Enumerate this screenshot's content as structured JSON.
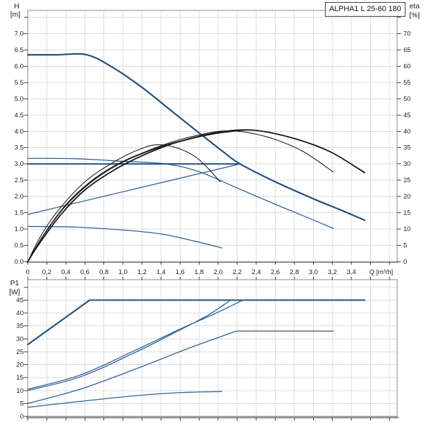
{
  "title_box": {
    "label": "ALPHA1 L 25-60 180"
  },
  "top_chart": {
    "y_left": {
      "title_lines": [
        "H",
        "[m]"
      ],
      "ticks": [
        "7.0",
        "6.5",
        "6.0",
        "5.5",
        "5.0",
        "4.5",
        "4.0",
        "3.5",
        "3.0",
        "2.5",
        "2.0",
        "1.5",
        "1.0",
        "0.5",
        "0.0"
      ]
    },
    "y_right": {
      "title_lines": [
        "eta",
        "[%]"
      ],
      "ticks": [
        "70",
        "65",
        "60",
        "55",
        "50",
        "45",
        "40",
        "35",
        "30",
        "25",
        "20",
        "15",
        "10",
        "5",
        "0"
      ]
    },
    "x": {
      "ticks": [
        "0",
        "0,2",
        "0,4",
        "0,6",
        "0,8",
        "1,0",
        "1,2",
        "1,4",
        "1,6",
        "1,8",
        "2,0",
        "2,2",
        "2,4",
        "2,6",
        "2,8",
        "3,0",
        "3,2",
        "3,4"
      ],
      "unit_label": "Q [m³/h]"
    }
  },
  "bottom_chart": {
    "y_left": {
      "title_lines": [
        "P1",
        "[W]"
      ],
      "ticks": [
        "45",
        "40",
        "35",
        "30",
        "25",
        "20",
        "15",
        "10",
        "5",
        "0"
      ]
    }
  },
  "chart_data": [
    {
      "type": "line",
      "title": "ALPHA1 L 25-60 180",
      "xlabel": "Q [m³/h]",
      "ylabel": "H [m]",
      "y2label": "eta [%]",
      "xlim": [
        0,
        3.88
      ],
      "ylim": [
        0,
        7.72
      ],
      "y2lim": [
        0,
        77.2
      ],
      "grid": true,
      "legend": "none",
      "series": [
        {
          "name": "speed-iii-curve",
          "axis": "H",
          "color": "#1f4e7c",
          "width": 2.2,
          "smooth": true,
          "points": [
            [
              0,
              6.35
            ],
            [
              0.3,
              6.35
            ],
            [
              0.62,
              6.35
            ],
            [
              0.9,
              5.95
            ],
            [
              1.2,
              5.35
            ],
            [
              1.5,
              4.65
            ],
            [
              1.8,
              3.95
            ],
            [
              2.05,
              3.38
            ],
            [
              2.23,
              3.0
            ],
            [
              2.6,
              2.45
            ],
            [
              3.0,
              1.93
            ],
            [
              3.3,
              1.57
            ],
            [
              3.54,
              1.27
            ]
          ]
        },
        {
          "name": "speed-ii-curve",
          "axis": "H",
          "color": "#2e5f93",
          "width": 1.3,
          "smooth": true,
          "points": [
            [
              0,
              3.17
            ],
            [
              0.5,
              3.16
            ],
            [
              1.0,
              3.08
            ],
            [
              1.45,
              3.0
            ],
            [
              1.8,
              2.76
            ],
            [
              2.2,
              2.26
            ],
            [
              2.6,
              1.76
            ],
            [
              2.9,
              1.4
            ],
            [
              3.21,
              1.02
            ]
          ]
        },
        {
          "name": "speed-i-curve",
          "axis": "H",
          "color": "#2e5f93",
          "width": 1.3,
          "smooth": true,
          "points": [
            [
              0,
              1.08
            ],
            [
              0.5,
              1.06
            ],
            [
              1.0,
              0.97
            ],
            [
              1.4,
              0.85
            ],
            [
              1.75,
              0.63
            ],
            [
              2.04,
              0.42
            ]
          ]
        },
        {
          "name": "const-pressure-3m-line",
          "axis": "H",
          "color": "#1f4e7c",
          "width": 2.0,
          "smooth": false,
          "points": [
            [
              0,
              3.0
            ],
            [
              2.23,
              3.0
            ]
          ]
        },
        {
          "name": "prop-pressure-line",
          "axis": "H",
          "color": "#2e5f93",
          "width": 1.3,
          "smooth": false,
          "points": [
            [
              0,
              1.45
            ],
            [
              2.23,
              3.0
            ]
          ]
        },
        {
          "name": "eta-iii-curve",
          "axis": "eta",
          "color": "#141414",
          "width": 1.8,
          "smooth": true,
          "points": [
            [
              0,
              0
            ],
            [
              0.12,
              5.5
            ],
            [
              0.35,
              14.5
            ],
            [
              0.6,
              22
            ],
            [
              0.9,
              28
            ],
            [
              1.2,
              32.5
            ],
            [
              1.5,
              36
            ],
            [
              1.8,
              38.5
            ],
            [
              2.1,
              40.1
            ],
            [
              2.35,
              40.4
            ],
            [
              2.6,
              39.3
            ],
            [
              2.9,
              36.9
            ],
            [
              3.2,
              33.4
            ],
            [
              3.54,
              27.3
            ]
          ]
        },
        {
          "name": "eta-ii-curve",
          "axis": "eta",
          "color": "#1c1c1c",
          "width": 1.1,
          "smooth": true,
          "points": [
            [
              0,
              0
            ],
            [
              0.12,
              6
            ],
            [
              0.35,
              15.5
            ],
            [
              0.6,
              23
            ],
            [
              0.9,
              29
            ],
            [
              1.2,
              33.3
            ],
            [
              1.5,
              36.6
            ],
            [
              1.8,
              38.9
            ],
            [
              2.05,
              40.1
            ],
            [
              2.3,
              39.7
            ],
            [
              2.6,
              37.5
            ],
            [
              2.9,
              33.7
            ],
            [
              3.21,
              27.5
            ]
          ]
        },
        {
          "name": "eta-i-curve",
          "axis": "eta",
          "color": "#1c1c1c",
          "width": 1.1,
          "smooth": true,
          "points": [
            [
              0,
              0
            ],
            [
              0.12,
              7
            ],
            [
              0.3,
              15
            ],
            [
              0.6,
              24.5
            ],
            [
              0.9,
              30.5
            ],
            [
              1.15,
              34.2
            ],
            [
              1.36,
              35.9
            ],
            [
              1.6,
              34.6
            ],
            [
              1.8,
              31.3
            ],
            [
              2.02,
              24.6
            ]
          ]
        },
        {
          "name": "eta-prop-curve",
          "axis": "eta",
          "color": "#1c1c1c",
          "width": 1.1,
          "smooth": true,
          "points": [
            [
              0,
              0
            ],
            [
              0.15,
              7.5
            ],
            [
              0.4,
              17.5
            ],
            [
              0.7,
              25.5
            ],
            [
              1.0,
              30.8
            ],
            [
              1.4,
              35.4
            ],
            [
              1.8,
              38.4
            ],
            [
              2.05,
              39.7
            ],
            [
              2.23,
              40.2
            ]
          ]
        },
        {
          "name": "eta-const-curve",
          "axis": "eta",
          "color": "#1c1c1c",
          "width": 1.1,
          "smooth": true,
          "points": [
            [
              0,
              0
            ],
            [
              0.13,
              6.5
            ],
            [
              0.38,
              16.5
            ],
            [
              0.65,
              24
            ],
            [
              0.95,
              29.8
            ],
            [
              1.3,
              34.2
            ],
            [
              1.7,
              37.6
            ],
            [
              2.0,
              39.4
            ],
            [
              2.3,
              40.4
            ]
          ]
        }
      ]
    },
    {
      "type": "line",
      "title": "",
      "xlabel": "Q [m³/h]",
      "ylabel": "P1 [W]",
      "xlim": [
        0,
        3.88
      ],
      "ylim": [
        0,
        53
      ],
      "grid": true,
      "legend": "none",
      "series": [
        {
          "name": "p1-max-rise",
          "axis": "P",
          "color": "#1f4e7c",
          "width": 2.2,
          "smooth": false,
          "points": [
            [
              0,
              27.8
            ],
            [
              0.65,
              45
            ]
          ]
        },
        {
          "name": "p1-limit-45w",
          "axis": "P",
          "color": "#35608e",
          "width": 2.2,
          "smooth": false,
          "points": [
            [
              0.65,
              45
            ],
            [
              3.54,
              45
            ]
          ]
        },
        {
          "name": "p1-curve-a",
          "axis": "P",
          "color": "#2e5f93",
          "width": 1.3,
          "smooth": true,
          "points": [
            [
              0,
              10.5
            ],
            [
              0.55,
              16
            ],
            [
              1.13,
              25.6
            ],
            [
              1.6,
              33.8
            ],
            [
              1.95,
              39.5
            ],
            [
              2.26,
              45
            ]
          ]
        },
        {
          "name": "p1-curve-b",
          "axis": "P",
          "color": "#2e5f93",
          "width": 1.3,
          "smooth": true,
          "points": [
            [
              0,
              10
            ],
            [
              0.55,
              15.3
            ],
            [
              1.13,
              24.8
            ],
            [
              1.6,
              33.5
            ],
            [
              1.9,
              39.3
            ],
            [
              2.13,
              45
            ]
          ]
        },
        {
          "name": "p1-curve-c",
          "axis": "P",
          "color": "#2e5f93",
          "width": 1.3,
          "smooth": true,
          "points": [
            [
              0,
              5
            ],
            [
              0.55,
              10.5
            ],
            [
              1.13,
              18.3
            ],
            [
              1.7,
              26.5
            ],
            [
              2.19,
              33
            ]
          ]
        },
        {
          "name": "p1-limit-33w",
          "axis": "P",
          "color": "#73889f",
          "width": 1.8,
          "smooth": false,
          "points": [
            [
              2.19,
              33
            ],
            [
              3.21,
              33
            ]
          ]
        },
        {
          "name": "p1-curve-d",
          "axis": "P",
          "color": "#2e5f93",
          "width": 1.3,
          "smooth": true,
          "points": [
            [
              0,
              3.5
            ],
            [
              0.55,
              5.8
            ],
            [
              1.13,
              8
            ],
            [
              1.6,
              9.2
            ],
            [
              2.04,
              9.6
            ]
          ]
        }
      ]
    }
  ]
}
